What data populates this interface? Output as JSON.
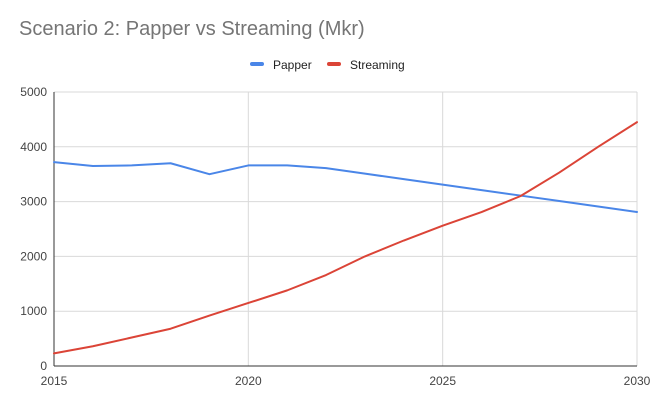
{
  "chart_data": {
    "type": "line",
    "title": "Scenario 2: Papper vs Streaming (Mkr)",
    "x": [
      2015,
      2016,
      2017,
      2018,
      2019,
      2020,
      2021,
      2022,
      2023,
      2024,
      2025,
      2026,
      2027,
      2028,
      2029,
      2030
    ],
    "x_ticks": [
      2015,
      2020,
      2025,
      2030
    ],
    "xlim": [
      2015,
      2030
    ],
    "y_ticks": [
      0,
      1000,
      2000,
      3000,
      4000,
      5000
    ],
    "ylim": [
      0,
      5000
    ],
    "grid": true,
    "legend_position": "top-center",
    "series": [
      {
        "name": "Papper",
        "color": "#4a86e8",
        "values": [
          3720,
          3650,
          3660,
          3700,
          3500,
          3660,
          3660,
          3610,
          3510,
          3410,
          3310,
          3210,
          3110,
          3010,
          2910,
          2810
        ]
      },
      {
        "name": "Streaming",
        "color": "#db4437",
        "values": [
          230,
          360,
          520,
          680,
          920,
          1150,
          1380,
          1660,
          2000,
          2290,
          2560,
          2810,
          3100,
          3530,
          4000,
          4450
        ]
      }
    ]
  }
}
